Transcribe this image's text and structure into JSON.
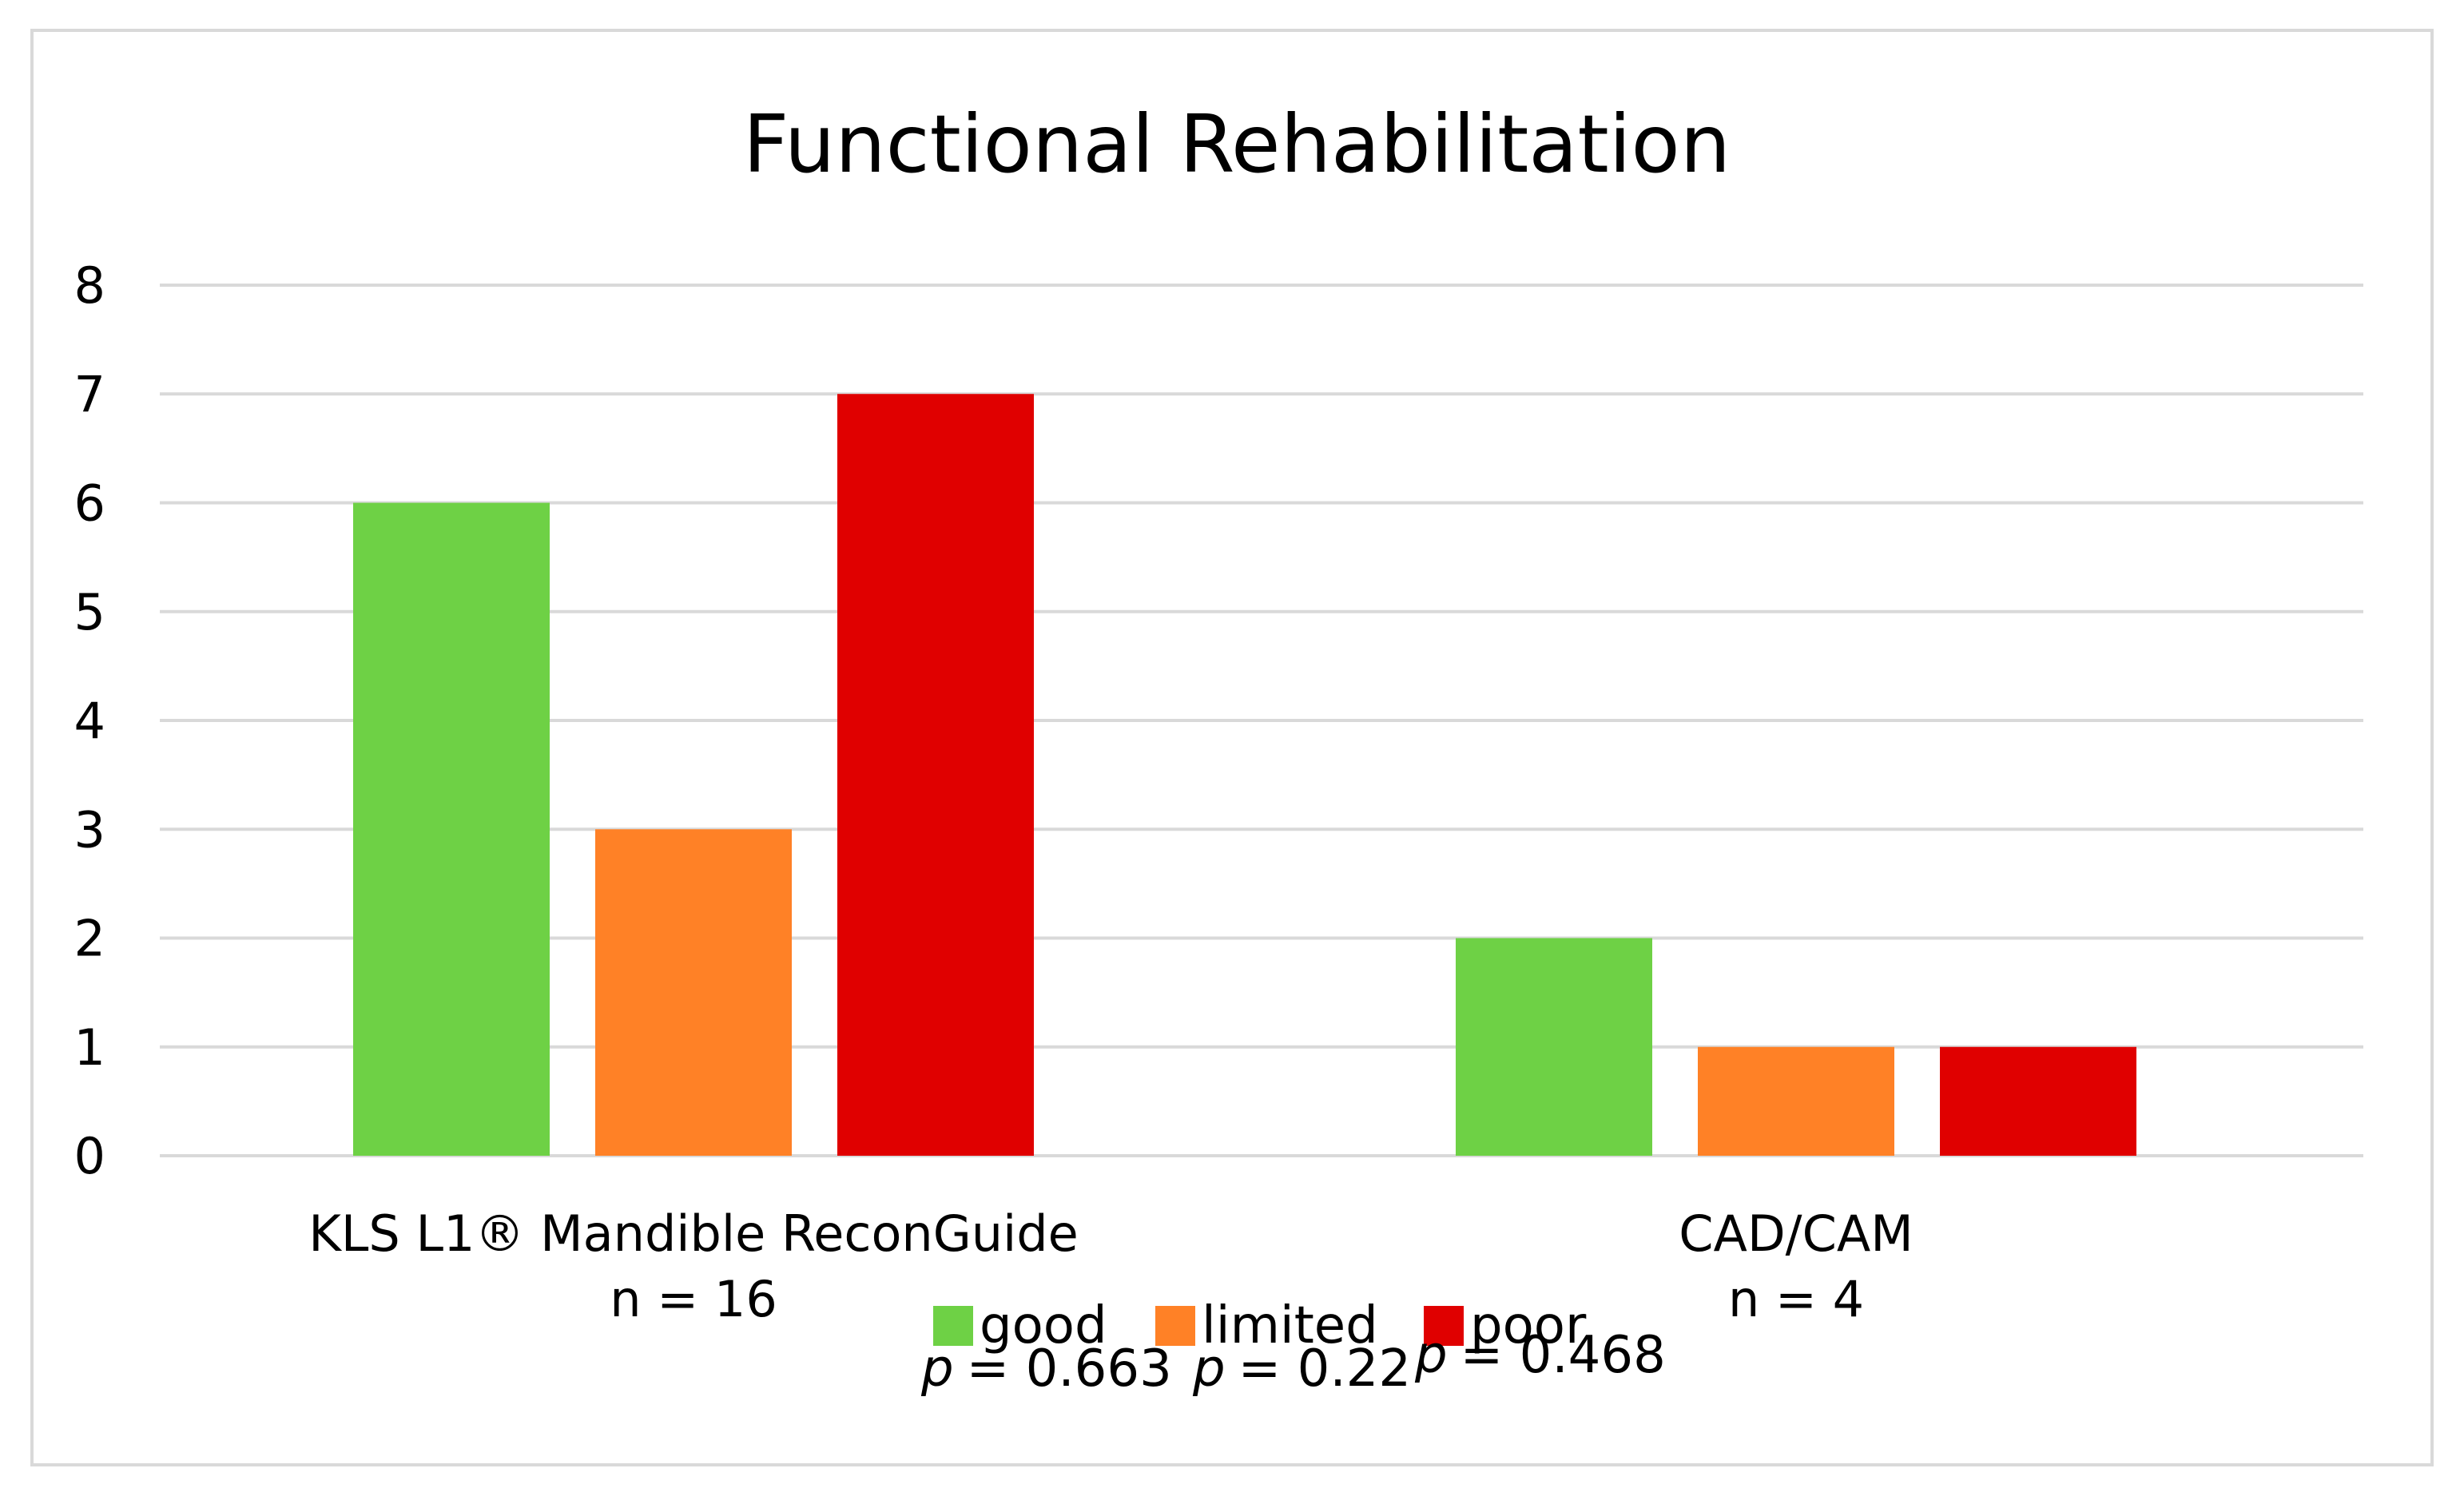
{
  "chart_data": {
    "type": "bar",
    "title": "Functional Rehabilitation",
    "categories": [
      {
        "label": "KLS L1® Mandible ReconGuide",
        "sublabel": "n = 16"
      },
      {
        "label": "CAD/CAM",
        "sublabel": "n = 4"
      }
    ],
    "series": [
      {
        "name": "good",
        "color": "#6ed145",
        "values": [
          6,
          2
        ],
        "p_label": "p",
        "p_value": "= 0.663"
      },
      {
        "name": "limited",
        "color": "#ff8126",
        "values": [
          3,
          1
        ],
        "p_label": "p",
        "p_value": "= 0.22"
      },
      {
        "name": "poor",
        "color": "#e00000",
        "values": [
          7,
          1
        ],
        "p_label": "p",
        "p_value": "= 0.468"
      }
    ],
    "ylim": [
      0,
      8
    ],
    "yticks": [
      "0",
      "1",
      "2",
      "3",
      "4",
      "5",
      "6",
      "7",
      "8"
    ],
    "xlabel": "",
    "ylabel": "",
    "grid": true,
    "legend_position": "bottom"
  }
}
